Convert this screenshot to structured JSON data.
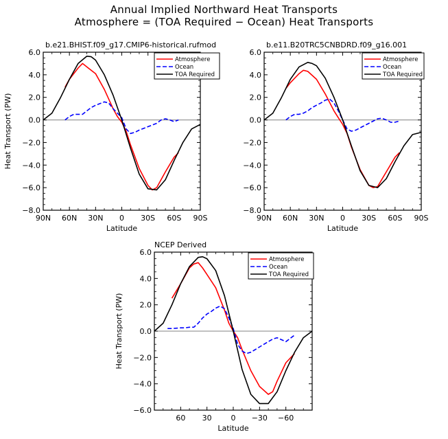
{
  "title_line1": "Annual Implied Northward Heat Transports",
  "title_line2": "Atmosphere = (TOA Required − Ocean) Heat Transports",
  "colors": {
    "atmosphere": "#ff0000",
    "ocean": "#0000ff",
    "toa": "#000000",
    "zero_line": "#808080"
  },
  "chart_data": [
    {
      "type": "line",
      "title": "b.e21.BHIST.f09_g17.CMIP6-historical.rufmod",
      "xlabel": "Latitude",
      "ylabel": "Heat Transport (PW)",
      "xlim": [
        90,
        -90
      ],
      "ylim": [
        -8,
        6
      ],
      "xticks": [
        90,
        60,
        30,
        0,
        -30,
        -60,
        -90
      ],
      "xticklabels": [
        "90N",
        "60N",
        "30N",
        "0",
        "30S",
        "60S",
        "90S"
      ],
      "yticks": [
        -8,
        -6,
        -4,
        -2,
        0,
        2,
        4,
        6
      ],
      "yticklabels": [
        "−8.0",
        "−6.0",
        "−4.0",
        "−2.0",
        "0.0",
        "2.0",
        "4.0",
        "6.0"
      ],
      "legend_position": "top-right",
      "series": [
        {
          "name": "Atmosphere",
          "x": [
            65,
            60,
            50,
            45,
            40,
            30,
            20,
            10,
            5,
            0,
            -5,
            -10,
            -20,
            -30,
            -35,
            -40,
            -50,
            -60,
            -65
          ],
          "y": [
            2.9,
            3.6,
            4.6,
            5.0,
            4.7,
            4.1,
            2.7,
            1.0,
            0.3,
            -0.2,
            -1.0,
            -2.2,
            -4.3,
            -5.8,
            -6.2,
            -6.0,
            -4.6,
            -3.3,
            -2.9
          ]
        },
        {
          "name": "Ocean",
          "x": [
            65,
            60,
            55,
            50,
            45,
            40,
            35,
            30,
            25,
            20,
            15,
            10,
            5,
            0,
            -5,
            -10,
            -15,
            -20,
            -30,
            -40,
            -45,
            -50,
            -55,
            -60,
            -65
          ],
          "y": [
            0.0,
            0.3,
            0.5,
            0.5,
            0.5,
            0.8,
            1.1,
            1.3,
            1.45,
            1.6,
            1.5,
            1.0,
            0.6,
            0.2,
            -0.8,
            -1.2,
            -1.1,
            -0.9,
            -0.6,
            -0.3,
            0.0,
            0.1,
            0.0,
            -0.15,
            0.0
          ]
        },
        {
          "name": "TOA Required",
          "x": [
            90,
            80,
            70,
            60,
            50,
            40,
            35,
            30,
            20,
            10,
            0,
            -10,
            -20,
            -30,
            -40,
            -50,
            -60,
            -70,
            -80,
            -90
          ],
          "y": [
            0.0,
            0.6,
            2.0,
            3.6,
            5.0,
            5.65,
            5.6,
            5.3,
            4.0,
            2.2,
            0.0,
            -2.5,
            -4.8,
            -6.1,
            -6.2,
            -5.3,
            -3.6,
            -2.0,
            -0.8,
            -0.4
          ]
        }
      ]
    },
    {
      "type": "line",
      "title": "b.e11.B20TRC5CNBDRD.f09_g16.001",
      "xlabel": "Latitude",
      "ylabel": "",
      "xlim": [
        90,
        -90
      ],
      "ylim": [
        -8,
        6
      ],
      "xticks": [
        90,
        60,
        30,
        0,
        -30,
        -60,
        -90
      ],
      "xticklabels": [
        "90N",
        "60N",
        "30N",
        "0",
        "30S",
        "60S",
        "90S"
      ],
      "yticks": [
        -8,
        -6,
        -4,
        -2,
        0,
        2,
        4,
        6
      ],
      "yticklabels": [
        "−8.0",
        "−6.0",
        "−4.0",
        "−2.0",
        "0.0",
        "2.0",
        "4.0",
        "6.0"
      ],
      "legend_position": "top-right",
      "series": [
        {
          "name": "Atmosphere",
          "x": [
            65,
            60,
            50,
            45,
            40,
            30,
            20,
            10,
            5,
            0,
            -5,
            -10,
            -20,
            -30,
            -35,
            -40,
            -50,
            -60,
            -65
          ],
          "y": [
            2.8,
            3.3,
            4.1,
            4.4,
            4.3,
            3.6,
            2.3,
            0.8,
            0.2,
            -0.4,
            -1.2,
            -2.4,
            -4.4,
            -5.8,
            -6.0,
            -5.9,
            -4.6,
            -3.3,
            -2.9
          ]
        },
        {
          "name": "Ocean",
          "x": [
            65,
            60,
            55,
            50,
            45,
            40,
            35,
            30,
            25,
            20,
            15,
            10,
            5,
            0,
            -5,
            -10,
            -15,
            -20,
            -30,
            -40,
            -45,
            -50,
            -55,
            -60,
            -65
          ],
          "y": [
            0.0,
            0.3,
            0.5,
            0.5,
            0.6,
            0.8,
            1.1,
            1.3,
            1.5,
            1.75,
            1.85,
            1.5,
            0.8,
            0.0,
            -0.8,
            -1.0,
            -0.9,
            -0.7,
            -0.3,
            0.1,
            0.15,
            0.0,
            -0.2,
            -0.2,
            -0.1
          ]
        },
        {
          "name": "TOA Required",
          "x": [
            90,
            80,
            70,
            60,
            50,
            40,
            35,
            30,
            20,
            10,
            0,
            -10,
            -20,
            -30,
            -40,
            -50,
            -60,
            -70,
            -80,
            -90
          ],
          "y": [
            0.0,
            0.6,
            2.0,
            3.6,
            4.7,
            5.1,
            5.0,
            4.8,
            3.7,
            2.0,
            0.0,
            -2.3,
            -4.5,
            -5.8,
            -6.0,
            -5.2,
            -3.7,
            -2.3,
            -1.3,
            -1.1
          ]
        }
      ]
    },
    {
      "type": "line",
      "title": "NCEP Derived",
      "xlabel": "Latitude",
      "ylabel": "Heat Transport (PW)",
      "xlim": [
        90,
        -90
      ],
      "ylim": [
        -6,
        6
      ],
      "xticks": [
        60,
        30,
        0,
        -30,
        -60
      ],
      "xticklabels": [
        "60",
        "30",
        "0",
        "−30",
        "−60"
      ],
      "yticks": [
        -6,
        -4,
        -2,
        0,
        2,
        4,
        6
      ],
      "yticklabels": [
        "−6.0",
        "−4.0",
        "−2.0",
        "0.0",
        "2.0",
        "4.0",
        "6.0"
      ],
      "legend_position": "top-right",
      "series": [
        {
          "name": "Atmosphere",
          "x": [
            70,
            60,
            50,
            45,
            40,
            35,
            30,
            20,
            10,
            5,
            0,
            -5,
            -10,
            -20,
            -30,
            -40,
            -45,
            -50,
            -60,
            -70
          ],
          "y": [
            2.5,
            3.6,
            4.8,
            5.1,
            5.2,
            4.8,
            4.3,
            3.3,
            1.6,
            0.6,
            0.0,
            -0.5,
            -1.4,
            -3.0,
            -4.2,
            -4.8,
            -4.6,
            -3.8,
            -2.4,
            -1.7
          ]
        },
        {
          "name": "Ocean",
          "x": [
            75,
            70,
            60,
            55,
            50,
            45,
            40,
            35,
            30,
            25,
            20,
            15,
            10,
            5,
            0,
            -5,
            -10,
            -15,
            -20,
            -30,
            -40,
            -45,
            -50,
            -60,
            -70
          ],
          "y": [
            0.2,
            0.2,
            0.25,
            0.25,
            0.3,
            0.3,
            0.6,
            1.0,
            1.3,
            1.5,
            1.75,
            1.9,
            1.7,
            1.0,
            0.2,
            -1.0,
            -1.5,
            -1.7,
            -1.6,
            -1.2,
            -0.8,
            -0.6,
            -0.5,
            -0.8,
            -0.3
          ]
        },
        {
          "name": "TOA Required",
          "x": [
            90,
            80,
            70,
            60,
            50,
            40,
            35,
            30,
            20,
            10,
            0,
            -10,
            -20,
            -30,
            -40,
            -50,
            -60,
            -70,
            -80,
            -90
          ],
          "y": [
            0.0,
            0.6,
            2.0,
            3.6,
            4.9,
            5.6,
            5.65,
            5.5,
            4.6,
            2.7,
            0.0,
            -2.9,
            -4.8,
            -5.5,
            -5.5,
            -4.6,
            -3.0,
            -1.6,
            -0.5,
            0.0
          ]
        }
      ]
    }
  ]
}
